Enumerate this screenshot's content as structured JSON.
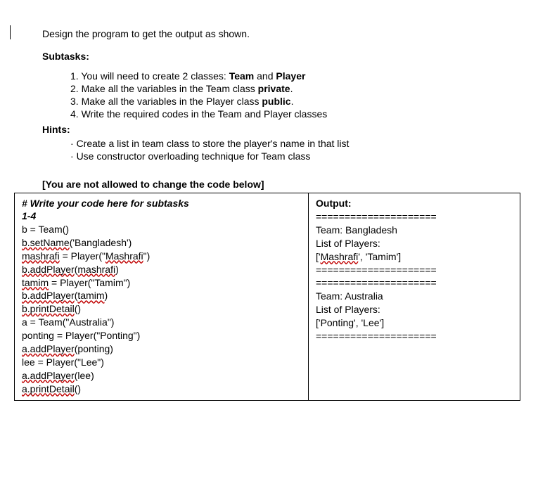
{
  "intro": "Design the program to get the output as shown.",
  "subtasks_label": "Subtasks:",
  "subtasks": {
    "i1_pre": "You will need to create 2 classes: ",
    "i1_b1": "Team",
    "i1_mid": " and ",
    "i1_b2": "Player",
    "i2_pre": "Make all the variables in the Team class ",
    "i2_b": "private",
    "i2_post": ".",
    "i3_pre": "Make all the variables in the Player class ",
    "i3_b": "public",
    "i3_post": ".",
    "i4": "Write the required codes in the Team and Player classes"
  },
  "hints_label": "Hints:",
  "hints": {
    "h1": "Create a list in team class to store the player's name in that list",
    "h2": "Use constructor overloading technique for Team class"
  },
  "no_change": "[You are not allowed to change the code below]",
  "code": {
    "head_left_l1": "# Write your code here for subtasks",
    "head_left_l2": "1-4",
    "l1": "b = Team()",
    "l2_pre": "b.setName",
    "l2_post": "('Bangladesh')",
    "l3_a": "mashrafi",
    "l3_b": " = Player(\"",
    "l3_c": "Mashrafi",
    "l3_d": "\")",
    "l4_a": "b.addPlayer",
    "l4_b": "(",
    "l4_c": "mashrafi",
    "l4_d": ")",
    "l5_a": "tamim",
    "l5_b": " = Player(\"Tamim\")",
    "l6_a": "b.addPlayer",
    "l6_b": "(",
    "l6_c": "tamim",
    "l6_d": ")",
    "l7_a": "b.printDetail",
    "l7_b": "()",
    "l8": "a = Team(\"Australia\")",
    "l9": "ponting = Player(\"Ponting\")",
    "l10_a": "a.addPlayer",
    "l10_b": "(ponting)",
    "l11": "lee = Player(\"Lee\")",
    "l12_a": "a.addPlayer",
    "l12_b": "(lee)",
    "l13_a": "a.printDetail",
    "l13_b": "()"
  },
  "output": {
    "head": "Output:",
    "sep": "=====================",
    "o1": "Team: Bangladesh",
    "o2": "List of Players:",
    "o3_a": "['",
    "o3_b": "Mashrafi",
    "o3_c": "', 'Tamim']",
    "o4": "Team: Australia",
    "o5": "List of Players:",
    "o6": "['Ponting', 'Lee']"
  }
}
